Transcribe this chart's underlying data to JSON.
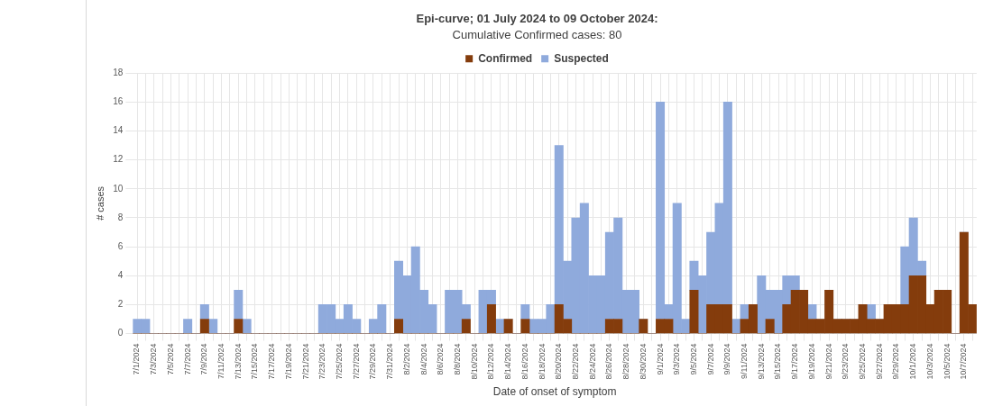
{
  "chart_data": {
    "type": "bar",
    "title": "Epi-curve; 01 July 2024 to 09 October 2024:",
    "subtitle": "Cumulative Confirmed cases: 80",
    "xlabel": "Date of onset of symptom",
    "ylabel": "# cases",
    "categories": [
      "7/1/2024",
      null,
      "7/3/2024",
      null,
      "7/5/2024",
      null,
      "7/7/2024",
      null,
      "7/9/2024",
      null,
      "7/11/2024",
      null,
      "7/13/2024",
      null,
      "7/15/2024",
      null,
      "7/17/2024",
      null,
      "7/19/2024",
      null,
      "7/21/2024",
      null,
      "7/23/2024",
      null,
      "7/25/2024",
      null,
      "7/27/2024",
      null,
      "7/29/2024",
      null,
      "7/31/2024",
      null,
      "8/2/2024",
      null,
      "8/4/2024",
      null,
      "8/6/2024",
      null,
      "8/8/2024",
      null,
      "8/10/2024",
      null,
      "8/12/2024",
      null,
      "8/14/2024",
      null,
      "8/16/2024",
      null,
      "8/18/2024",
      null,
      "8/20/2024",
      null,
      "8/22/2024",
      null,
      "8/24/2024",
      null,
      "8/26/2024",
      null,
      "8/28/2024",
      null,
      "8/30/2024",
      null,
      "9/1/2024",
      null,
      "9/3/2024",
      null,
      "9/5/2024",
      null,
      "9/7/2024",
      null,
      "9/9/2024",
      null,
      "9/11/2024",
      null,
      "9/13/2024",
      null,
      "9/15/2024",
      null,
      "9/17/2024",
      null,
      "9/19/2024",
      null,
      "9/21/2024",
      null,
      "9/23/2024",
      null,
      "9/25/2024",
      null,
      "9/27/2024",
      null,
      "9/29/2024",
      null,
      "10/1/2024",
      null,
      "10/3/2024",
      null,
      "10/5/2024",
      null,
      "10/7/2024",
      null
    ],
    "series": [
      {
        "name": "Confirmed",
        "color": "#843c0c",
        "values": [
          0,
          0,
          0,
          0,
          0,
          0,
          0,
          0,
          1,
          0,
          0,
          0,
          1,
          0,
          0,
          0,
          0,
          0,
          0,
          0,
          0,
          0,
          0,
          0,
          0,
          0,
          0,
          0,
          0,
          0,
          0,
          1,
          0,
          0,
          0,
          0,
          0,
          0,
          0,
          1,
          0,
          0,
          2,
          0,
          1,
          0,
          1,
          0,
          0,
          0,
          2,
          1,
          0,
          0,
          0,
          0,
          1,
          1,
          0,
          0,
          1,
          0,
          1,
          1,
          0,
          0,
          3,
          0,
          2,
          2,
          2,
          0,
          1,
          2,
          0,
          1,
          0,
          2,
          3,
          3,
          1,
          1,
          3,
          1,
          1,
          1,
          2,
          1,
          1,
          2,
          2,
          2,
          4,
          4,
          2,
          3,
          3,
          0,
          7,
          2
        ]
      },
      {
        "name": "Suspected",
        "color": "#8faadc",
        "values": [
          1,
          1,
          0,
          0,
          0,
          0,
          1,
          0,
          1,
          1,
          0,
          0,
          2,
          1,
          0,
          0,
          0,
          0,
          0,
          0,
          0,
          0,
          2,
          2,
          1,
          2,
          1,
          0,
          1,
          2,
          0,
          4,
          4,
          6,
          3,
          2,
          0,
          3,
          3,
          1,
          0,
          3,
          1,
          1,
          0,
          0,
          1,
          1,
          1,
          2,
          11,
          4,
          8,
          9,
          4,
          4,
          6,
          7,
          3,
          3,
          0,
          0,
          15,
          1,
          9,
          1,
          2,
          4,
          5,
          7,
          14,
          1,
          1,
          0,
          4,
          2,
          3,
          2,
          1,
          0,
          1,
          0,
          0,
          0,
          0,
          0,
          0,
          1,
          0,
          0,
          0,
          4,
          4,
          1,
          0,
          0,
          0,
          0,
          0,
          0
        ]
      }
    ],
    "stacked": true,
    "ylim": [
      0,
      18
    ],
    "yticks": [
      0,
      2,
      4,
      6,
      8,
      10,
      12,
      14,
      16,
      18
    ],
    "grid": true,
    "legend": "top"
  }
}
